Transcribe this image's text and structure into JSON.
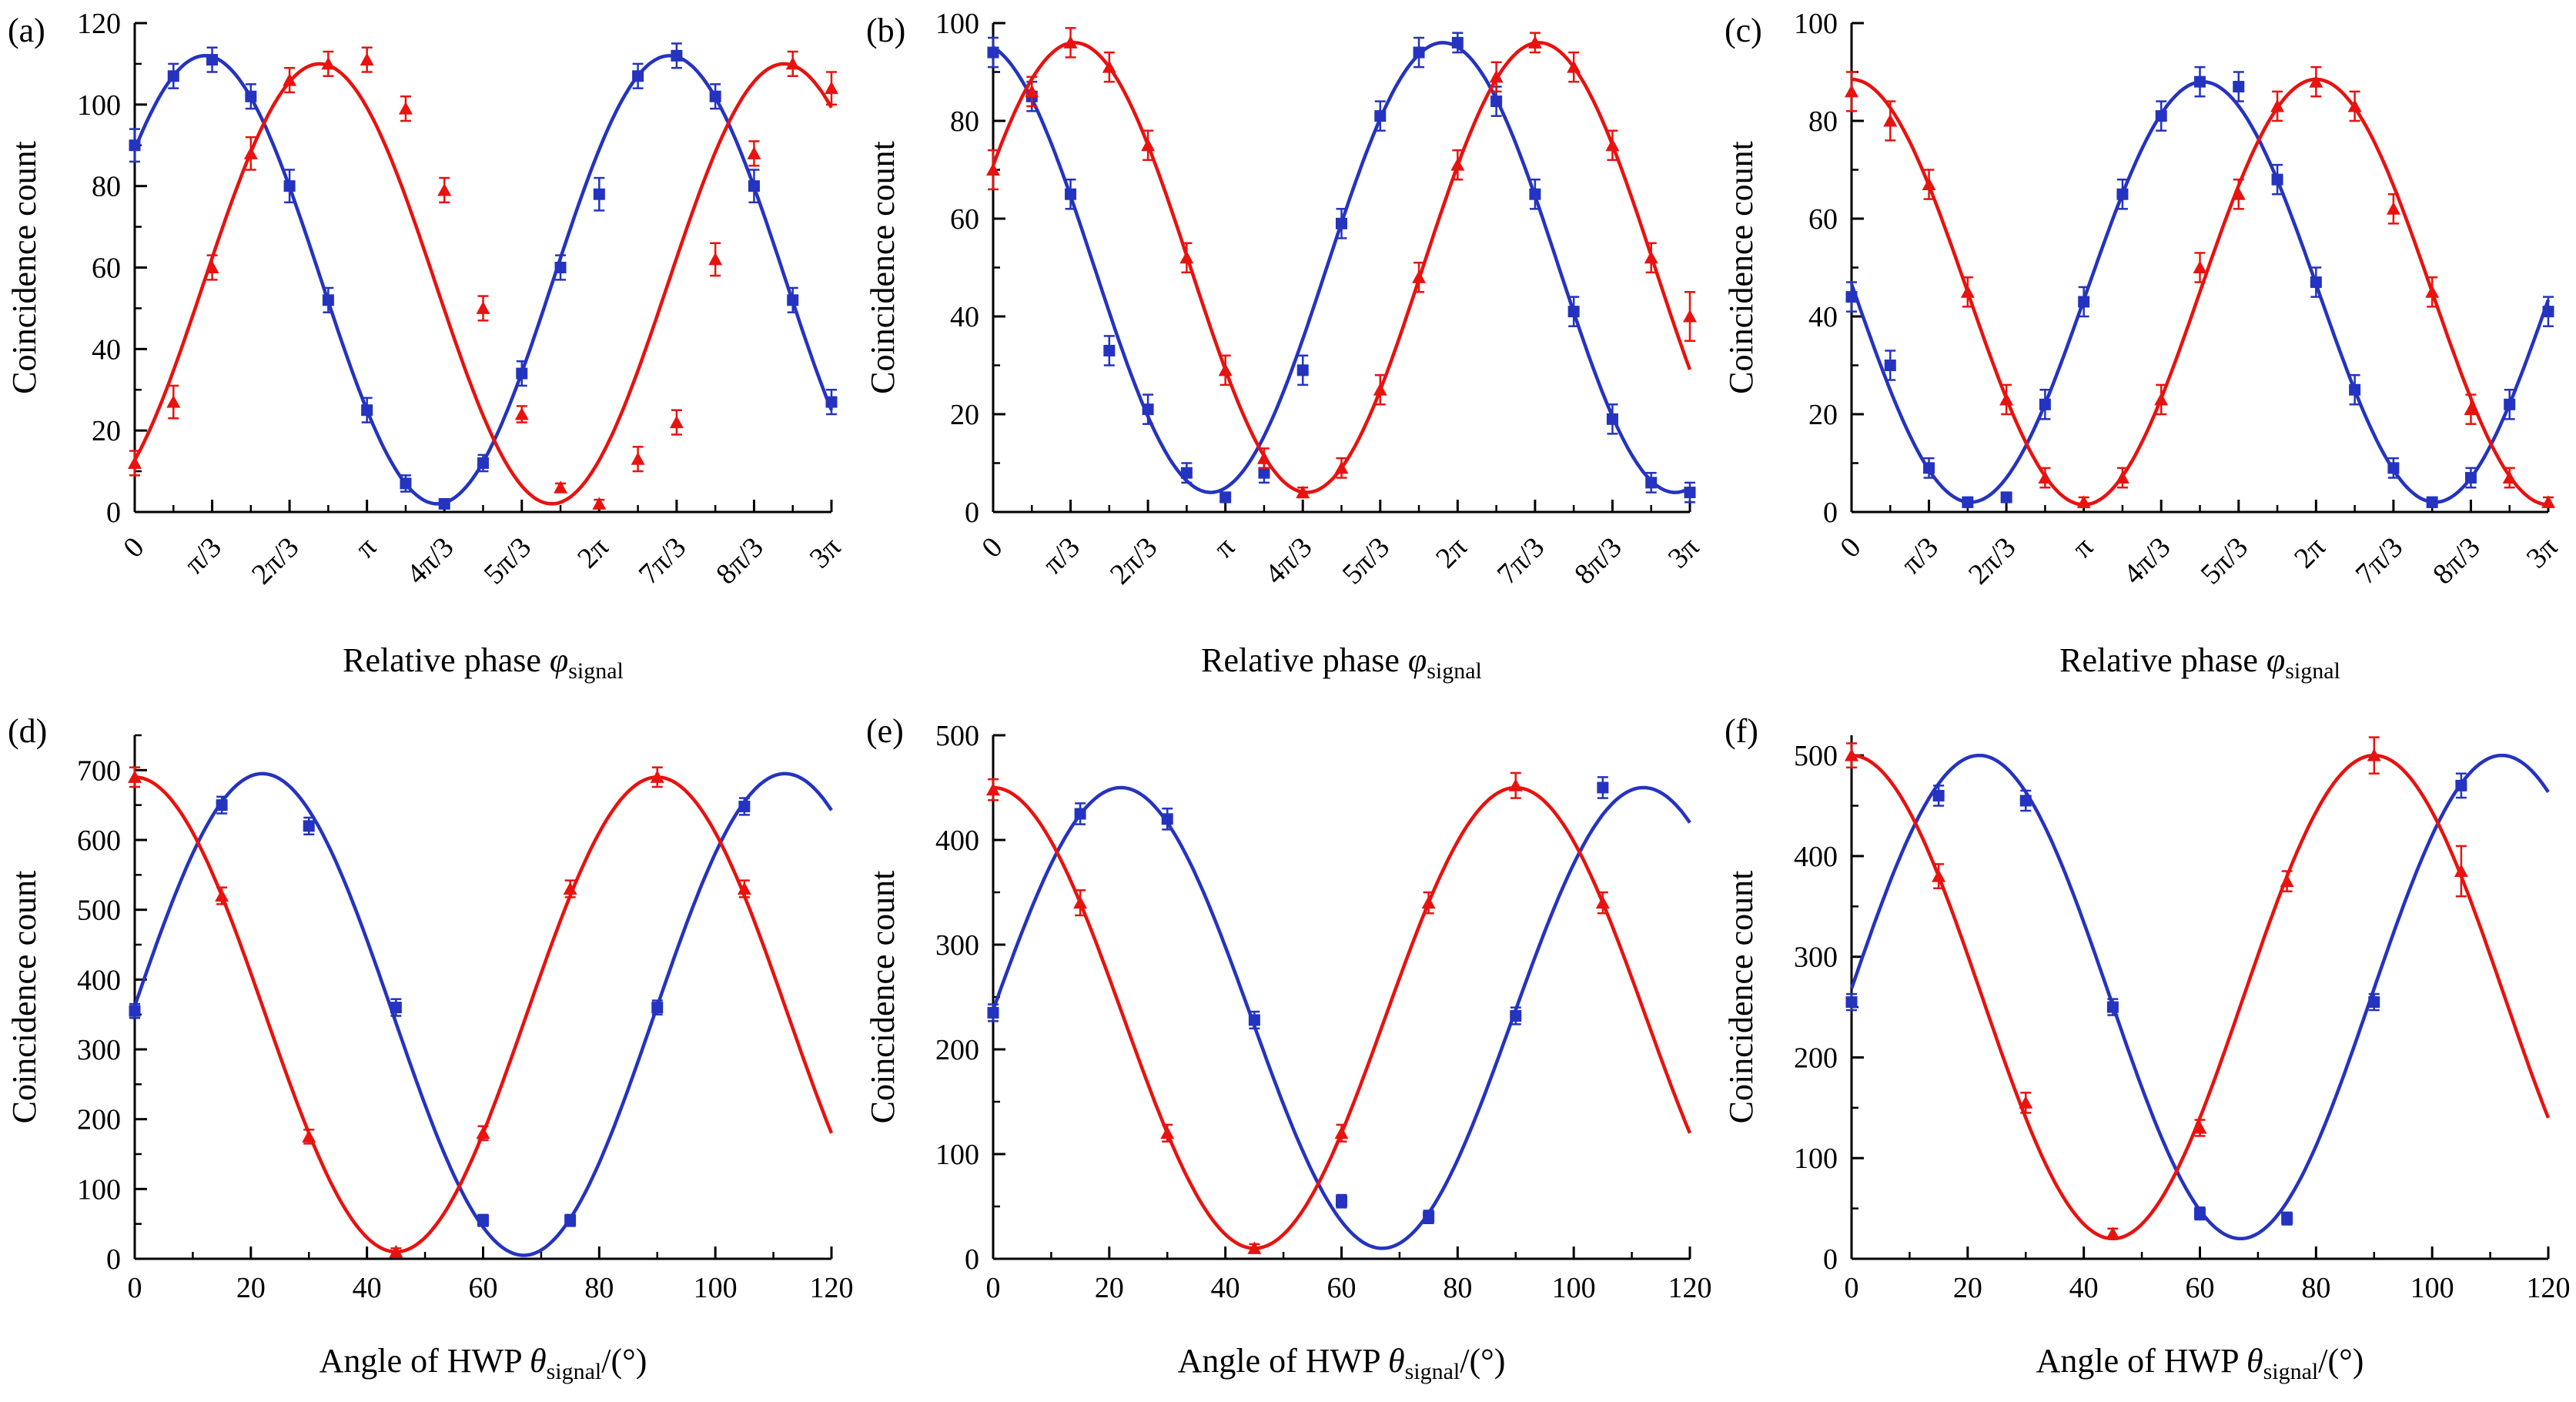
{
  "figure": {
    "background": "#ffffff",
    "colors": {
      "blue": "#2433c0",
      "red": "#e8120f"
    },
    "legend": "none",
    "grid": false
  },
  "chart_data": [
    {
      "tag": "(a)",
      "type": "line",
      "xlabel": {
        "prefix": "Relative phase ",
        "symbol": "φ",
        "sub": "signal",
        "suffix": ""
      },
      "ylabel": "Coincidence count",
      "xlim": [
        0,
        9.4248
      ],
      "ylim": [
        0,
        120
      ],
      "xtick_rotate": true,
      "xticks": [
        {
          "v": 0,
          "l": "0"
        },
        {
          "v": 1.0472,
          "l": "π/3"
        },
        {
          "v": 2.0944,
          "l": "2π/3"
        },
        {
          "v": 3.1416,
          "l": "π"
        },
        {
          "v": 4.1888,
          "l": "4π/3"
        },
        {
          "v": 5.236,
          "l": "5π/3"
        },
        {
          "v": 6.2832,
          "l": "2π"
        },
        {
          "v": 7.3304,
          "l": "7π/3"
        },
        {
          "v": 8.3776,
          "l": "8π/3"
        },
        {
          "v": 9.4248,
          "l": "3π"
        }
      ],
      "yticks": [
        0,
        20,
        40,
        60,
        80,
        100,
        120
      ],
      "x_minor": 0.5236,
      "y_minor": 10,
      "series": [
        {
          "name": "blue-squares",
          "color": "blue",
          "marker": "square",
          "fit": {
            "c": 57,
            "a": 55,
            "phi": 0.95,
            "period": 6.28319
          },
          "x": [
            0,
            0.5236,
            1.0472,
            1.5708,
            2.0944,
            2.618,
            3.1416,
            3.6652,
            4.1888,
            4.7124,
            5.236,
            5.7596,
            6.2832,
            6.8068,
            7.3304,
            7.854,
            8.3776,
            8.9012,
            9.4248
          ],
          "y": [
            90,
            107,
            111,
            102,
            80,
            52,
            25,
            7,
            2,
            12,
            34,
            60,
            78,
            107,
            112,
            102,
            80,
            52,
            27
          ],
          "err": [
            4,
            3,
            3,
            3,
            4,
            3,
            3,
            2,
            1,
            2,
            3,
            3,
            4,
            3,
            3,
            3,
            4,
            3,
            3
          ]
        },
        {
          "name": "red-triangles",
          "color": "red",
          "marker": "triangle",
          "fit": {
            "c": 56,
            "a": 54,
            "phi": 2.5,
            "period": 6.28319
          },
          "x": [
            0,
            0.5236,
            1.0472,
            1.5708,
            2.0944,
            2.618,
            3.1416,
            3.6652,
            4.1888,
            4.7124,
            5.236,
            5.7596,
            6.2832,
            6.8068,
            7.3304,
            7.854,
            8.3776,
            8.9012,
            9.4248
          ],
          "y": [
            12,
            27,
            60,
            88,
            106,
            110,
            111,
            99,
            79,
            50,
            24,
            6,
            2,
            13,
            22,
            62,
            88,
            110,
            104
          ],
          "err": [
            3,
            4,
            3,
            4,
            3,
            3,
            3,
            3,
            3,
            3,
            2,
            1,
            1,
            3,
            3,
            4,
            3,
            3,
            4
          ]
        }
      ]
    },
    {
      "tag": "(b)",
      "type": "line",
      "xlabel": {
        "prefix": "Relative phase ",
        "symbol": "φ",
        "sub": "signal",
        "suffix": ""
      },
      "ylabel": "Coincidence count",
      "xlim": [
        0,
        9.4248
      ],
      "ylim": [
        0,
        100
      ],
      "xtick_rotate": true,
      "xticks": [
        {
          "v": 0,
          "l": "0"
        },
        {
          "v": 1.0472,
          "l": "π/3"
        },
        {
          "v": 2.0944,
          "l": "2π/3"
        },
        {
          "v": 3.1416,
          "l": "π"
        },
        {
          "v": 4.1888,
          "l": "4π/3"
        },
        {
          "v": 5.236,
          "l": "5π/3"
        },
        {
          "v": 6.2832,
          "l": "2π"
        },
        {
          "v": 7.3304,
          "l": "7π/3"
        },
        {
          "v": 8.3776,
          "l": "8π/3"
        },
        {
          "v": 9.4248,
          "l": "3π"
        }
      ],
      "yticks": [
        0,
        20,
        40,
        60,
        80,
        100
      ],
      "x_minor": 0.5236,
      "y_minor": 10,
      "series": [
        {
          "name": "blue-squares",
          "color": "blue",
          "marker": "square",
          "fit": {
            "c": 50,
            "a": 46,
            "phi": -0.2,
            "period": 6.28319
          },
          "x": [
            0,
            0.5236,
            1.0472,
            1.5708,
            2.0944,
            2.618,
            3.1416,
            3.6652,
            4.1888,
            4.7124,
            5.236,
            5.7596,
            6.2832,
            6.8068,
            7.3304,
            7.854,
            8.3776,
            8.9012,
            9.4248
          ],
          "y": [
            94,
            85,
            65,
            33,
            21,
            8,
            3,
            8,
            29,
            59,
            81,
            94,
            96,
            84,
            65,
            41,
            19,
            6,
            4
          ],
          "err": [
            3,
            3,
            3,
            3,
            3,
            2,
            1,
            2,
            3,
            3,
            3,
            3,
            2,
            3,
            3,
            3,
            3,
            2,
            2
          ]
        },
        {
          "name": "red-triangles",
          "color": "red",
          "marker": "triangle",
          "fit": {
            "c": 50,
            "a": 46,
            "phi": 1.1,
            "period": 6.28319
          },
          "x": [
            0,
            0.5236,
            1.0472,
            1.5708,
            2.0944,
            2.618,
            3.1416,
            3.6652,
            4.1888,
            4.7124,
            5.236,
            5.7596,
            6.2832,
            6.8068,
            7.3304,
            7.854,
            8.3776,
            8.9012,
            9.4248
          ],
          "y": [
            70,
            86,
            96,
            91,
            75,
            52,
            29,
            11,
            4,
            9,
            25,
            48,
            71,
            89,
            96,
            91,
            75,
            52,
            40
          ],
          "err": [
            4,
            3,
            3,
            3,
            3,
            3,
            3,
            2,
            1,
            2,
            3,
            3,
            3,
            3,
            2,
            3,
            3,
            3,
            5
          ]
        }
      ]
    },
    {
      "tag": "(c)",
      "type": "line",
      "xlabel": {
        "prefix": "Relative phase ",
        "symbol": "φ",
        "sub": "signal",
        "suffix": ""
      },
      "ylabel": "Coincidence count",
      "xlim": [
        0,
        9.4248
      ],
      "ylim": [
        0,
        100
      ],
      "xtick_rotate": true,
      "xticks": [
        {
          "v": 0,
          "l": "0"
        },
        {
          "v": 1.0472,
          "l": "π/3"
        },
        {
          "v": 2.0944,
          "l": "2π/3"
        },
        {
          "v": 3.1416,
          "l": "π"
        },
        {
          "v": 4.1888,
          "l": "4π/3"
        },
        {
          "v": 5.236,
          "l": "5π/3"
        },
        {
          "v": 6.2832,
          "l": "2π"
        },
        {
          "v": 7.3304,
          "l": "7π/3"
        },
        {
          "v": 8.3776,
          "l": "8π/3"
        },
        {
          "v": 9.4248,
          "l": "3π"
        }
      ],
      "yticks": [
        0,
        20,
        40,
        60,
        80,
        100
      ],
      "x_minor": 0.5236,
      "y_minor": 10,
      "series": [
        {
          "name": "blue-squares",
          "color": "blue",
          "marker": "square",
          "fit": {
            "c": 45,
            "a": 43,
            "phi": 4.75,
            "period": 6.28319
          },
          "x": [
            0,
            0.5236,
            1.0472,
            1.5708,
            2.0944,
            2.618,
            3.1416,
            3.6652,
            4.1888,
            4.7124,
            5.236,
            5.7596,
            6.2832,
            6.8068,
            7.3304,
            7.854,
            8.3776,
            8.9012,
            9.4248
          ],
          "y": [
            44,
            30,
            9,
            2,
            3,
            22,
            43,
            65,
            81,
            88,
            87,
            68,
            47,
            25,
            9,
            2,
            7,
            22,
            41
          ],
          "err": [
            3,
            3,
            2,
            1,
            1,
            3,
            3,
            3,
            3,
            3,
            3,
            3,
            3,
            3,
            2,
            1,
            2,
            3,
            3
          ]
        },
        {
          "name": "red-triangles",
          "color": "red",
          "marker": "triangle",
          "fit": {
            "c": 45,
            "a": 43.5,
            "phi": 0,
            "period": 6.28319
          },
          "x": [
            0,
            0.5236,
            1.0472,
            1.5708,
            2.0944,
            2.618,
            3.1416,
            3.6652,
            4.1888,
            4.7124,
            5.236,
            5.7596,
            6.2832,
            6.8068,
            7.3304,
            7.854,
            8.3776,
            8.9012,
            9.4248
          ],
          "y": [
            86,
            80,
            67,
            45,
            23,
            7,
            2,
            7,
            23,
            50,
            65,
            83,
            88,
            83,
            62,
            45,
            21,
            7,
            2
          ],
          "err": [
            4,
            4,
            3,
            3,
            3,
            2,
            1,
            2,
            3,
            3,
            3,
            3,
            3,
            3,
            3,
            3,
            3,
            2,
            1
          ]
        }
      ]
    },
    {
      "tag": "(d)",
      "type": "line",
      "xlabel": {
        "prefix": "Angle of HWP ",
        "symbol": "θ",
        "sub": "signal",
        "suffix": "/(°)"
      },
      "ylabel": "Coincidence count",
      "xlim": [
        0,
        120
      ],
      "ylim": [
        0,
        750
      ],
      "xtick_rotate": false,
      "xticks": [
        {
          "v": 0,
          "l": "0"
        },
        {
          "v": 20,
          "l": "20"
        },
        {
          "v": 40,
          "l": "40"
        },
        {
          "v": 60,
          "l": "60"
        },
        {
          "v": 80,
          "l": "80"
        },
        {
          "v": 100,
          "l": "100"
        },
        {
          "v": 120,
          "l": "120"
        }
      ],
      "yticks": [
        0,
        100,
        200,
        300,
        400,
        500,
        600,
        700
      ],
      "x_minor": 10,
      "y_minor": 50,
      "series": [
        {
          "name": "blue-squares",
          "color": "blue",
          "marker": "square",
          "fit": {
            "c": 350,
            "a": 345,
            "phi": 22,
            "period": 90
          },
          "x": [
            0,
            15,
            30,
            45,
            60,
            75,
            90,
            105
          ],
          "y": [
            355,
            650,
            620,
            360,
            55,
            55,
            360,
            648
          ],
          "err": [
            10,
            12,
            12,
            12,
            8,
            8,
            10,
            12
          ]
        },
        {
          "name": "red-triangles",
          "color": "red",
          "marker": "triangle",
          "fit": {
            "c": 350,
            "a": 340,
            "phi": 0,
            "period": 90
          },
          "x": [
            0,
            15,
            30,
            45,
            60,
            75,
            90,
            105
          ],
          "y": [
            690,
            520,
            175,
            10,
            180,
            530,
            690,
            530
          ],
          "err": [
            14,
            12,
            10,
            5,
            10,
            12,
            14,
            12
          ]
        }
      ]
    },
    {
      "tag": "(e)",
      "type": "line",
      "xlabel": {
        "prefix": "Angle of HWP ",
        "symbol": "θ",
        "sub": "signal",
        "suffix": "/(°)"
      },
      "ylabel": "Coincidence count",
      "xlim": [
        0,
        120
      ],
      "ylim": [
        0,
        500
      ],
      "xtick_rotate": false,
      "xticks": [
        {
          "v": 0,
          "l": "0"
        },
        {
          "v": 20,
          "l": "20"
        },
        {
          "v": 40,
          "l": "40"
        },
        {
          "v": 60,
          "l": "60"
        },
        {
          "v": 80,
          "l": "80"
        },
        {
          "v": 100,
          "l": "100"
        },
        {
          "v": 120,
          "l": "120"
        }
      ],
      "yticks": [
        0,
        100,
        200,
        300,
        400,
        500
      ],
      "x_minor": 10,
      "y_minor": 50,
      "series": [
        {
          "name": "blue-squares",
          "color": "blue",
          "marker": "square",
          "fit": {
            "c": 230,
            "a": 220,
            "phi": 22,
            "period": 90
          },
          "x": [
            0,
            15,
            30,
            45,
            60,
            75,
            90,
            105
          ],
          "y": [
            235,
            425,
            420,
            228,
            55,
            40,
            232,
            450
          ],
          "err": [
            8,
            10,
            10,
            8,
            6,
            6,
            8,
            10
          ]
        },
        {
          "name": "red-triangles",
          "color": "red",
          "marker": "triangle",
          "fit": {
            "c": 230,
            "a": 220,
            "phi": 0,
            "period": 90
          },
          "x": [
            0,
            15,
            30,
            45,
            60,
            75,
            90,
            105
          ],
          "y": [
            448,
            340,
            120,
            10,
            120,
            340,
            452,
            340
          ],
          "err": [
            10,
            12,
            8,
            4,
            8,
            10,
            12,
            10
          ]
        }
      ]
    },
    {
      "tag": "(f)",
      "type": "line",
      "xlabel": {
        "prefix": "Angle of HWP ",
        "symbol": "θ",
        "sub": "signal",
        "suffix": "/(°)"
      },
      "ylabel": "Coincidence count",
      "xlim": [
        0,
        120
      ],
      "ylim": [
        0,
        520
      ],
      "xtick_rotate": false,
      "xticks": [
        {
          "v": 0,
          "l": "0"
        },
        {
          "v": 20,
          "l": "20"
        },
        {
          "v": 40,
          "l": "40"
        },
        {
          "v": 60,
          "l": "60"
        },
        {
          "v": 80,
          "l": "80"
        },
        {
          "v": 100,
          "l": "100"
        },
        {
          "v": 120,
          "l": "120"
        }
      ],
      "yticks": [
        0,
        100,
        200,
        300,
        400,
        500
      ],
      "x_minor": 10,
      "y_minor": 50,
      "series": [
        {
          "name": "blue-squares",
          "color": "blue",
          "marker": "square",
          "fit": {
            "c": 260,
            "a": 240,
            "phi": 22,
            "period": 90
          },
          "x": [
            0,
            15,
            30,
            45,
            60,
            75,
            90,
            105
          ],
          "y": [
            255,
            460,
            455,
            250,
            45,
            40,
            255,
            470
          ],
          "err": [
            8,
            10,
            10,
            8,
            6,
            6,
            8,
            12
          ]
        },
        {
          "name": "red-triangles",
          "color": "red",
          "marker": "triangle",
          "fit": {
            "c": 260,
            "a": 240,
            "phi": 0,
            "period": 90
          },
          "x": [
            0,
            15,
            30,
            45,
            60,
            75,
            90,
            105
          ],
          "y": [
            500,
            380,
            155,
            25,
            130,
            375,
            500,
            385
          ],
          "err": [
            12,
            12,
            10,
            5,
            8,
            10,
            18,
            25
          ]
        }
      ]
    }
  ]
}
